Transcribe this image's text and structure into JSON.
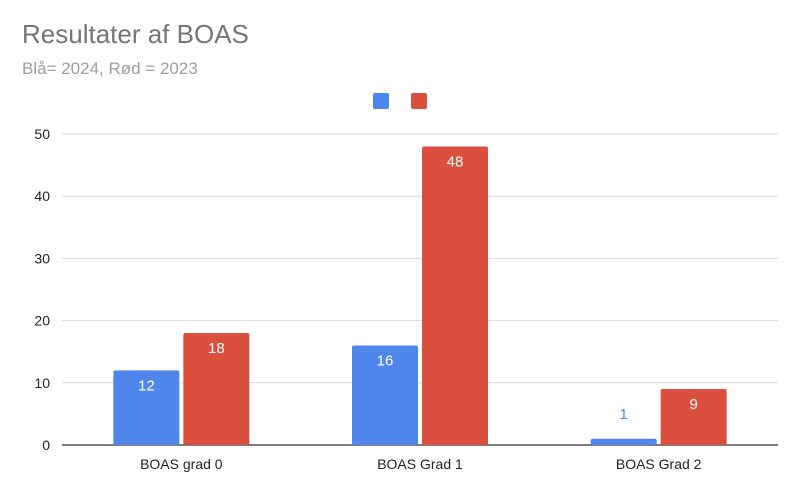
{
  "chart_data": {
    "type": "bar",
    "title": "Resultater af BOAS",
    "subtitle": "Blå= 2024, Rød = 2023",
    "categories": [
      "BOAS grad 0",
      "BOAS Grad 1",
      "BOAS Grad 2"
    ],
    "series": [
      {
        "values": [
          12,
          16,
          1
        ],
        "color": "#4f86ec"
      },
      {
        "values": [
          18,
          48,
          9
        ],
        "color": "#db4f3f"
      }
    ],
    "ylim": [
      0,
      50
    ],
    "yticks": [
      0,
      10,
      20,
      30,
      40,
      50
    ],
    "grid": true,
    "legend": "top-center",
    "xlabel": "",
    "ylabel": ""
  }
}
